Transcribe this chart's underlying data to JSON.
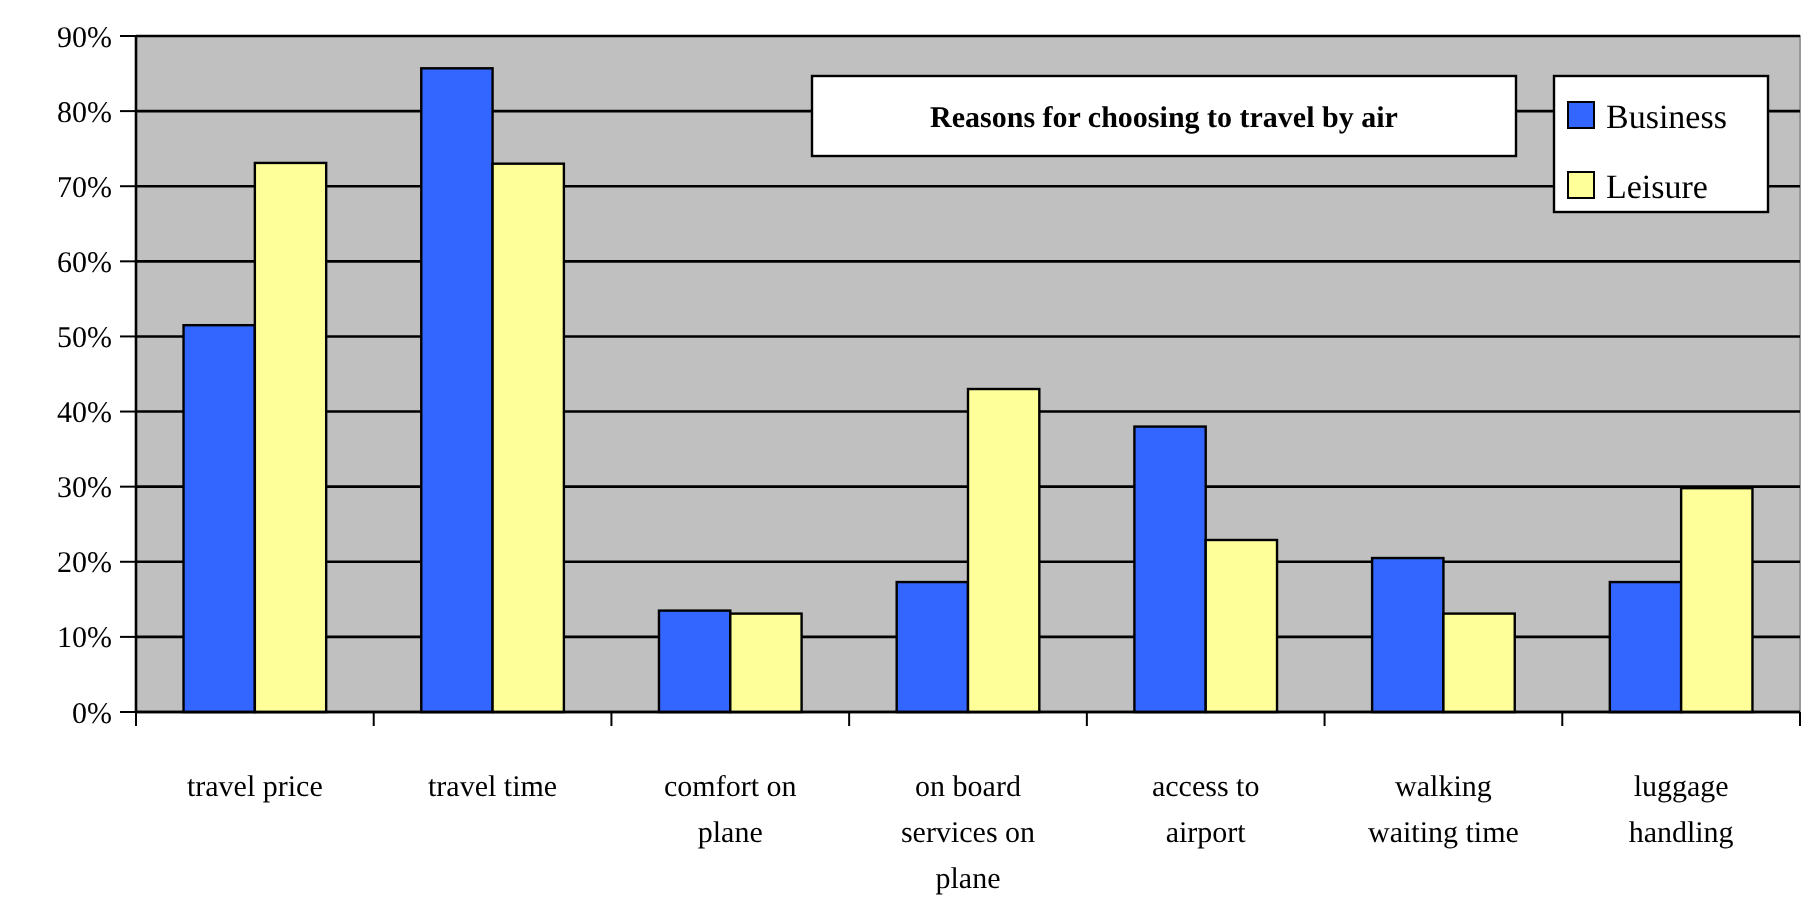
{
  "chart_data": {
    "type": "bar",
    "title": "Reasons for choosing to travel by air",
    "categories": [
      "travel price",
      "travel time",
      "comfort on plane",
      "on board services on plane",
      "access to airport",
      "walking waiting time",
      "luggage handling"
    ],
    "series": [
      {
        "name": "Business",
        "color": "#3366ff",
        "values": [
          51.5,
          85.7,
          13.5,
          17.3,
          38,
          20.5,
          17.3
        ]
      },
      {
        "name": "Leisure",
        "color": "#ffff99",
        "values": [
          73.1,
          73,
          13.1,
          43,
          22.9,
          13.1,
          29.8
        ]
      }
    ],
    "ylim": [
      0,
      90
    ],
    "yticks": [
      {
        "value": 0,
        "label": "0%"
      },
      {
        "value": 10,
        "label": "10%"
      },
      {
        "value": 20,
        "label": "20%"
      },
      {
        "value": 30,
        "label": "30%"
      },
      {
        "value": 40,
        "label": "40%"
      },
      {
        "value": 50,
        "label": "50%"
      },
      {
        "value": 60,
        "label": "60%"
      },
      {
        "value": 70,
        "label": "70%"
      },
      {
        "value": 80,
        "label": "80%"
      },
      {
        "value": 90,
        "label": "90%"
      }
    ],
    "grid": "y",
    "legend": "top right"
  }
}
